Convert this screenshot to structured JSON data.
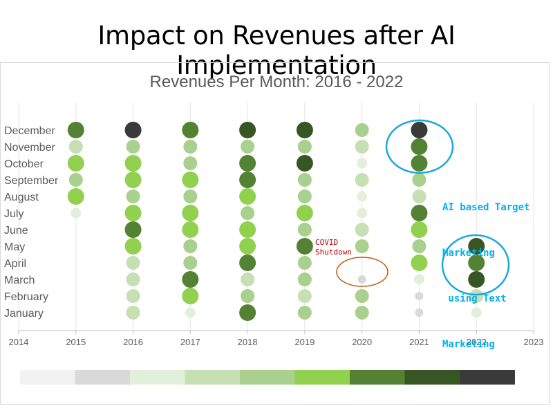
{
  "slide_title": "Impact on Revenues after AI Implementation",
  "chart_data": {
    "type": "scatter",
    "title": "Revenues Per Month:  2016 - 2022",
    "x_ticks": [
      "2014",
      "2015",
      "2016",
      "2017",
      "2018",
      "2019",
      "2020",
      "2021",
      "2022",
      "2023"
    ],
    "months": [
      "December",
      "November",
      "October",
      "September",
      "August",
      "July",
      "June",
      "May",
      "April",
      "March",
      "February",
      "January"
    ],
    "xlim": [
      2014,
      2023
    ],
    "grid": true,
    "level_colors": [
      "#f2f2f2",
      "#d9d9d9",
      "#e2efda",
      "#c6e0b4",
      "#a9d08e",
      "#92d050",
      "#548235",
      "#375623",
      "#3a3a3a"
    ],
    "level_legend": [
      0,
      1,
      2,
      3,
      4,
      5,
      6,
      7,
      8
    ],
    "points": [
      {
        "year": 2015,
        "levels": [
          6,
          3,
          5,
          4,
          5,
          2,
          null,
          null,
          null,
          null,
          null,
          null
        ]
      },
      {
        "year": 2016,
        "levels": [
          8,
          4,
          5,
          5,
          4,
          5,
          6,
          5,
          3,
          3,
          3,
          3
        ]
      },
      {
        "year": 2017,
        "levels": [
          6,
          4,
          4,
          5,
          4,
          5,
          5,
          4,
          4,
          6,
          5,
          2
        ]
      },
      {
        "year": 2018,
        "levels": [
          7,
          4,
          6,
          6,
          5,
          4,
          5,
          5,
          6,
          3,
          4,
          6
        ]
      },
      {
        "year": 2019,
        "levels": [
          7,
          4,
          7,
          4,
          4,
          5,
          4,
          6,
          4,
          4,
          3,
          4
        ]
      },
      {
        "year": 2020,
        "levels": [
          4,
          3,
          2,
          3,
          2,
          2,
          3,
          4,
          null,
          1,
          4,
          4
        ]
      },
      {
        "year": 2021,
        "levels": [
          8,
          6,
          6,
          4,
          3,
          6,
          5,
          4,
          5,
          2,
          1,
          1
        ]
      },
      {
        "year": 2022,
        "levels": [
          null,
          null,
          null,
          null,
          null,
          null,
          null,
          7,
          6,
          7,
          3,
          2
        ]
      }
    ],
    "annotations": {
      "covid": [
        "COVID",
        "Shutdown"
      ],
      "ai": [
        "AI based Target",
        "Marketing",
        " using Text",
        "Marketing"
      ]
    },
    "annotation_colors": {
      "covid": "#c00000",
      "ai": "#00b0f0",
      "covid_ring": "#c55a11",
      "ai_ring": "#1aa7e0"
    }
  }
}
